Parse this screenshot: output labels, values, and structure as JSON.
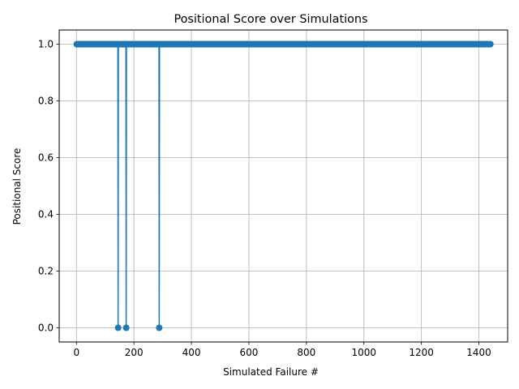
{
  "chart_data": {
    "type": "line",
    "title": "Positional Score over Simulations",
    "xlabel": "Simulated Failure #",
    "ylabel": "Positional Score",
    "xlim": [
      -60,
      1500
    ],
    "ylim": [
      -0.05,
      1.05
    ],
    "xticks": [
      0,
      200,
      400,
      600,
      800,
      1000,
      1200,
      1400
    ],
    "yticks": [
      0.0,
      0.2,
      0.4,
      0.6,
      0.8,
      1.0
    ],
    "xtick_labels": [
      "0",
      "200",
      "400",
      "600",
      "800",
      "1000",
      "1200",
      "1400"
    ],
    "ytick_labels": [
      "0.0",
      "0.2",
      "0.4",
      "0.6",
      "0.8",
      "1.0"
    ],
    "grid": true,
    "markers": true,
    "series": [
      {
        "color": "#1f77b4",
        "x_range": [
          1,
          1440
        ],
        "default_y": 1.0,
        "exceptions": [
          {
            "x": 145,
            "y": 0.0
          },
          {
            "x": 173,
            "y": 0.0
          },
          {
            "x": 288,
            "y": 0.0
          }
        ]
      }
    ]
  }
}
